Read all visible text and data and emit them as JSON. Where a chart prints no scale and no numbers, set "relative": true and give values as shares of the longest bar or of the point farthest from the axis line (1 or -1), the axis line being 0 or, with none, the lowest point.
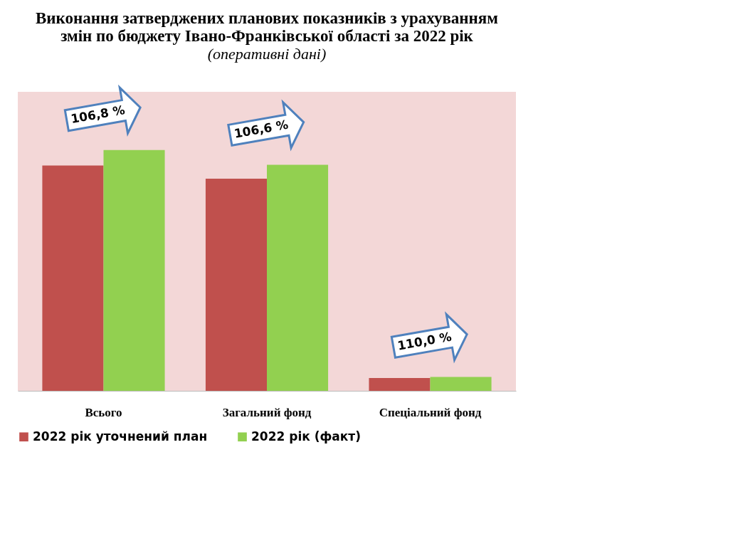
{
  "chart_data": {
    "type": "bar",
    "title": "Виконання затверджених планових показників з урахуванням\nзмін по бюджету Івано-Франківської області за 2022 рік",
    "subtitle": "(оперативні дані)",
    "relative": true,
    "categories": [
      "Всього",
      "Загальний фонд",
      "Спеціальний фонд"
    ],
    "series": [
      {
        "name": "2022 рік уточнений план",
        "color": "#c0504d",
        "values": [
          0.936,
          0.881,
          0.053
        ]
      },
      {
        "name": "2022 рік (факт)",
        "color": "#92d050",
        "values": [
          1,
          0.939,
          0.058
        ]
      }
    ],
    "annotations": [
      "106,8 %",
      "106,6 %",
      "110,0 %"
    ],
    "legend": "bottom"
  }
}
